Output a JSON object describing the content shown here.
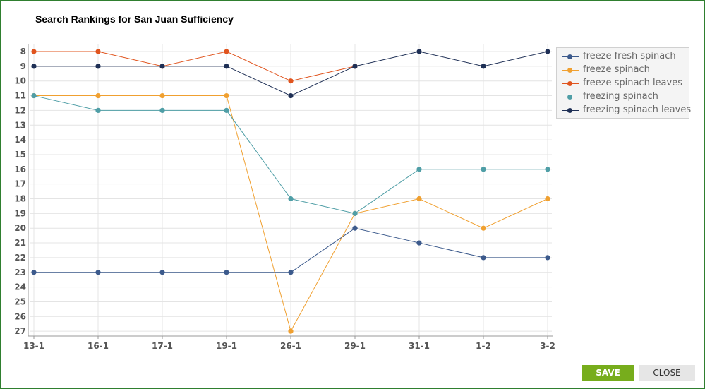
{
  "chart_data": {
    "type": "line",
    "title": "Search Rankings for San Juan Sufficiency",
    "categories": [
      "13-1",
      "16-1",
      "17-1",
      "19-1",
      "26-1",
      "29-1",
      "31-1",
      "1-2",
      "3-2"
    ],
    "yticks": [
      8,
      9,
      10,
      11,
      12,
      13,
      14,
      15,
      16,
      17,
      18,
      19,
      20,
      21,
      22,
      23,
      24,
      25,
      26,
      27
    ],
    "ylim": [
      8,
      27
    ],
    "y_reversed": true,
    "grid": true,
    "legend_position": "right",
    "series": [
      {
        "name": "freeze fresh spinach",
        "color": "#3c5a8c",
        "values": [
          23,
          23,
          23,
          23,
          23,
          20,
          21,
          22,
          22
        ]
      },
      {
        "name": "freeze spinach",
        "color": "#f0a030",
        "values": [
          11,
          11,
          11,
          11,
          27,
          19,
          18,
          20,
          18
        ]
      },
      {
        "name": "freeze spinach leaves",
        "color": "#e0541e",
        "values": [
          8,
          8,
          9,
          8,
          10,
          9,
          null,
          null,
          null
        ]
      },
      {
        "name": "freezing spinach",
        "color": "#4f9ea6",
        "values": [
          11,
          12,
          12,
          12,
          18,
          19,
          16,
          16,
          16
        ]
      },
      {
        "name": "freezing spinach leaves",
        "color": "#1e2f55",
        "values": [
          9,
          9,
          9,
          9,
          11,
          9,
          8,
          9,
          8
        ]
      }
    ]
  },
  "buttons": {
    "save_label": "SAVE",
    "close_label": "CLOSE"
  }
}
